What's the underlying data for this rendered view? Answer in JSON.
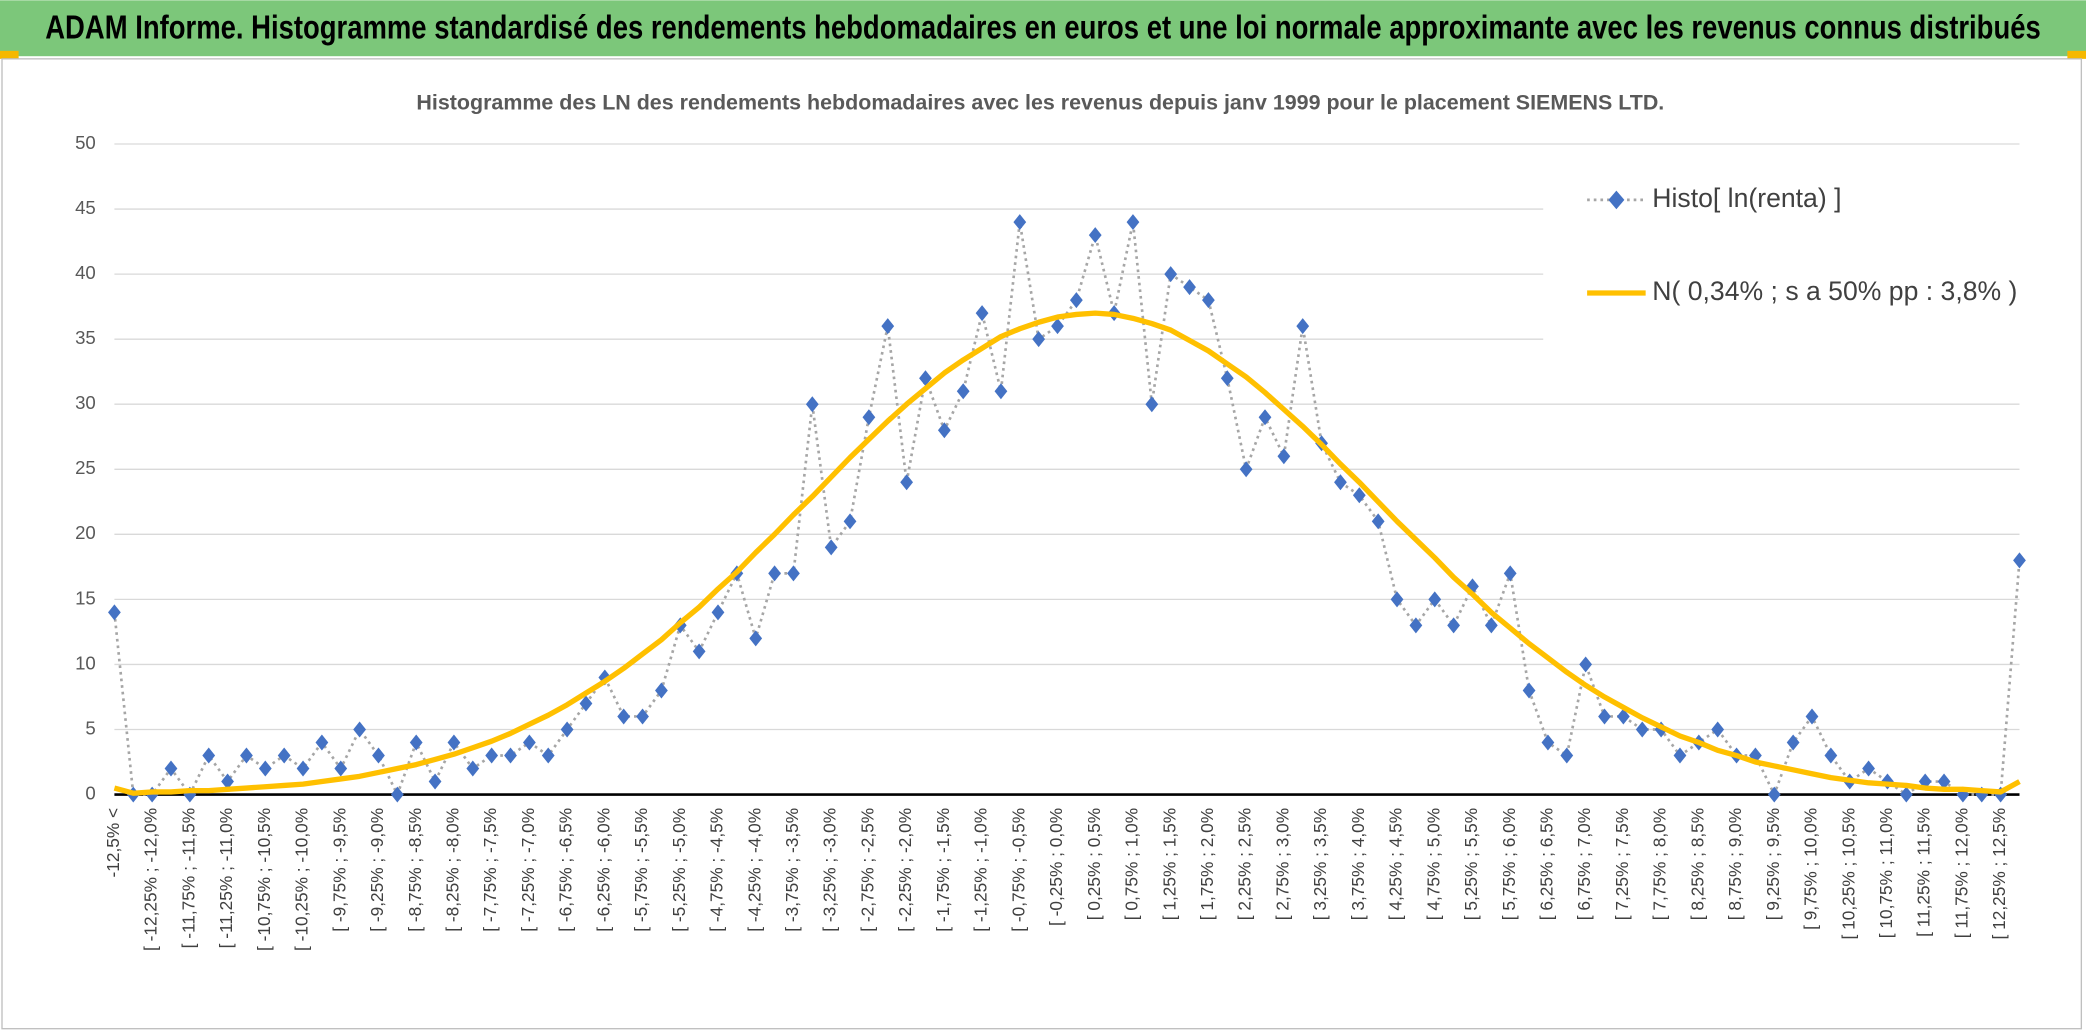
{
  "header": {
    "title": "ADAM Informe. Histogramme standardisé des rendements hebdomadaires en euros et une loi normale approximante avec les revenus connus distribués"
  },
  "chart_data": {
    "type": "line",
    "title": "Histogramme des LN des rendements hebdomadaires avec les revenus depuis janv 1999 pour le placement SIEMENS LTD.",
    "categories": [
      "-12,5% <",
      null,
      "[ -12,25% ; -12,0%",
      null,
      "[ -11,75% ; -11,5%",
      null,
      "[ -11,25% ; -11,0%",
      null,
      "[ -10,75% ; -10,5%",
      null,
      "[ -10,25% ; -10,0%",
      null,
      "[ -9,75% ; -9,5%",
      null,
      "[ -9,25% ; -9,0%",
      null,
      "[ -8,75% ; -8,5%",
      null,
      "[ -8,25% ; -8,0%",
      null,
      "[ -7,75% ; -7,5%",
      null,
      "[ -7,25% ; -7,0%",
      null,
      "[ -6,75% ; -6,5%",
      null,
      "[ -6,25% ; -6,0%",
      null,
      "[ -5,75% ; -5,5%",
      null,
      "[ -5,25% ; -5,0%",
      null,
      "[ -4,75% ; -4,5%",
      null,
      "[ -4,25% ; -4,0%",
      null,
      "[ -3,75% ; -3,5%",
      null,
      "[ -3,25% ; -3,0%",
      null,
      "[ -2,75% ; -2,5%",
      null,
      "[ -2,25% ; -2,0%",
      null,
      "[ -1,75% ; -1,5%",
      null,
      "[ -1,25% ; -1,0%",
      null,
      "[ -0,75% ; -0,5%",
      null,
      "[ -0,25% ; 0,0%",
      null,
      "[ 0,25% ; 0,5%",
      null,
      "[ 0,75% ; 1,0%",
      null,
      "[ 1,25% ; 1,5%",
      null,
      "[ 1,75% ; 2,0%",
      null,
      "[ 2,25% ; 2,5%",
      null,
      "[ 2,75% ; 3,0%",
      null,
      "[ 3,25% ; 3,5%",
      null,
      "[ 3,75% ; 4,0%",
      null,
      "[ 4,25% ; 4,5%",
      null,
      "[ 4,75% ; 5,0%",
      null,
      "[ 5,25% ; 5,5%",
      null,
      "[ 5,75% ; 6,0%",
      null,
      "[ 6,25% ; 6,5%",
      null,
      "[ 6,75% ; 7,0%",
      null,
      "[ 7,25% ; 7,5%",
      null,
      "[ 7,75% ; 8,0%",
      null,
      "[ 8,25% ; 8,5%",
      null,
      "[ 8,75% ; 9,0%",
      null,
      "[ 9,25% ; 9,5%",
      null,
      "[ 9,75% ; 10,0%",
      null,
      "[ 10,25% ; 10,5%",
      null,
      "[ 10,75% ; 11,0%",
      null,
      "[ 11,25% ; 11,5%",
      null,
      "[ 11,75% ; 12,0%",
      null,
      "[ 12,25% ; 12,5%",
      null
    ],
    "series": [
      {
        "name": "Histo[ ln(renta) ]",
        "color": "#4472c4",
        "line_color": "#a6a6a6",
        "line_style": "dotted",
        "marker": "diamond",
        "values": [
          14,
          0,
          0,
          2,
          0,
          3,
          1,
          3,
          2,
          3,
          2,
          4,
          2,
          5,
          3,
          0,
          4,
          1,
          4,
          2,
          3,
          3,
          4,
          3,
          5,
          7,
          9,
          6,
          6,
          8,
          13,
          11,
          14,
          17,
          12,
          17,
          17,
          30,
          19,
          21,
          29,
          36,
          24,
          32,
          28,
          31,
          37,
          31,
          44,
          35,
          36,
          38,
          43,
          37,
          44,
          30,
          40,
          39,
          38,
          32,
          25,
          29,
          26,
          36,
          27,
          24,
          23,
          21,
          15,
          13,
          15,
          13,
          16,
          13,
          17,
          8,
          4,
          3,
          10,
          6,
          6,
          5,
          5,
          3,
          4,
          5,
          3,
          3,
          0,
          4,
          6,
          3,
          1,
          2,
          1,
          0,
          1,
          1,
          0,
          0,
          0,
          18
        ]
      },
      {
        "name": "N( 0,34% ; s a 50% pp : 3,8% )",
        "color": "#ffc000",
        "line_style": "solid",
        "values": [
          0.5,
          0.1,
          0.2,
          0.2,
          0.3,
          0.3,
          0.4,
          0.5,
          0.6,
          0.7,
          0.8,
          1.0,
          1.2,
          1.4,
          1.7,
          2.0,
          2.3,
          2.7,
          3.1,
          3.6,
          4.1,
          4.7,
          5.4,
          6.1,
          6.9,
          7.8,
          8.7,
          9.7,
          10.8,
          11.9,
          13.2,
          14.4,
          15.8,
          17.1,
          18.6,
          20.0,
          21.5,
          22.9,
          24.4,
          25.9,
          27.3,
          28.7,
          30.0,
          31.2,
          32.4,
          33.4,
          34.3,
          35.2,
          35.8,
          36.3,
          36.7,
          36.9,
          37.0,
          36.9,
          36.6,
          36.2,
          35.7,
          34.9,
          34.1,
          33.1,
          32.1,
          30.9,
          29.6,
          28.3,
          26.9,
          25.4,
          24.0,
          22.5,
          21.0,
          19.6,
          18.2,
          16.7,
          15.4,
          14.0,
          12.8,
          11.6,
          10.5,
          9.4,
          8.4,
          7.5,
          6.7,
          5.9,
          5.2,
          4.5,
          4.0,
          3.4,
          3.0,
          2.5,
          2.2,
          1.9,
          1.6,
          1.3,
          1.1,
          0.9,
          0.8,
          0.7,
          0.5,
          0.4,
          0.4,
          0.3,
          0.2,
          1
        ]
      }
    ],
    "ylim": [
      0,
      50
    ],
    "yticks": [
      0,
      5,
      10,
      15,
      20,
      25,
      30,
      35,
      40,
      45,
      50
    ],
    "grid": true,
    "legend": "top-right"
  }
}
